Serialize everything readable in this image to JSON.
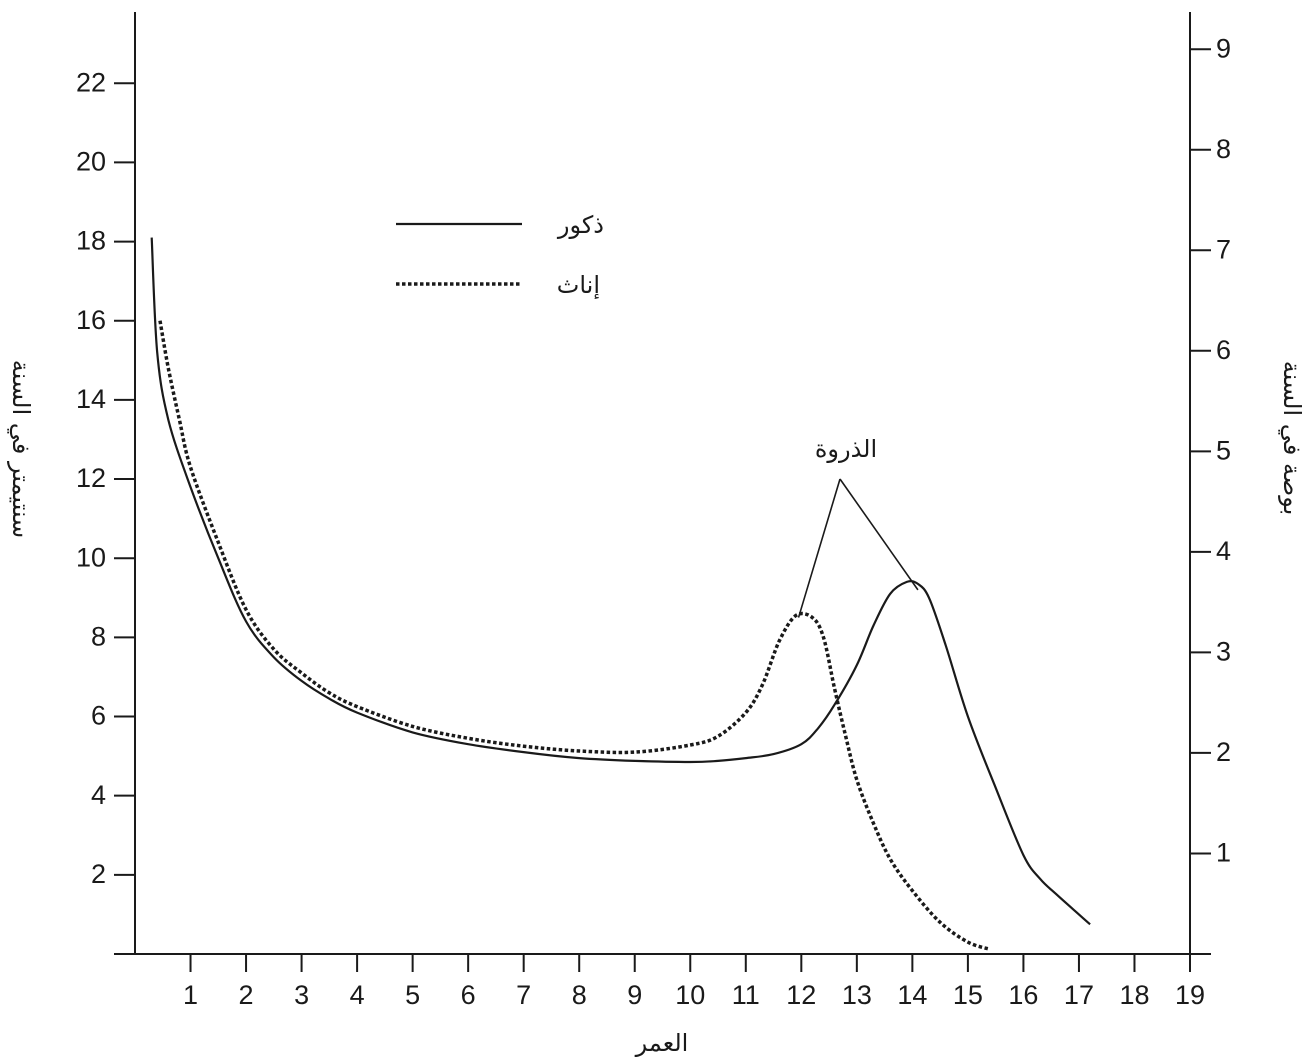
{
  "chart_data": {
    "type": "line",
    "xlabel": "العمر",
    "ylabel_left": "سنتيمتر في السنة",
    "ylabel_right": "بوصة في السنة",
    "xlim": [
      0,
      19
    ],
    "ylim_left": [
      0,
      23.8
    ],
    "ylim_right": [
      0,
      9.37
    ],
    "x_ticks": [
      1,
      2,
      3,
      4,
      5,
      6,
      7,
      8,
      9,
      10,
      11,
      12,
      13,
      14,
      15,
      16,
      17,
      18,
      19
    ],
    "y_left_ticks": [
      2,
      4,
      6,
      8,
      10,
      12,
      14,
      16,
      18,
      20,
      22
    ],
    "y_right_ticks": [
      1,
      2,
      3,
      4,
      5,
      6,
      7,
      8,
      9
    ],
    "grid": false,
    "legend_position": "top-left",
    "colors": {
      "line": "#1a1a1a"
    },
    "series": [
      {
        "name": "ذكور",
        "style": "solid",
        "x": [
          0.3,
          0.4,
          0.6,
          1,
          1.5,
          2,
          2.5,
          3,
          3.5,
          4,
          5,
          6,
          7,
          8,
          9,
          10,
          10.5,
          11,
          11.5,
          12,
          12.3,
          12.6,
          13,
          13.3,
          13.6,
          13.9,
          14.1,
          14.3,
          14.6,
          15,
          15.5,
          16,
          16.3,
          16.6,
          17,
          17.2
        ],
        "y": [
          18.1,
          15.2,
          13.5,
          11.8,
          10.0,
          8.4,
          7.5,
          6.9,
          6.45,
          6.1,
          5.6,
          5.3,
          5.1,
          4.95,
          4.88,
          4.85,
          4.88,
          4.95,
          5.05,
          5.3,
          5.7,
          6.3,
          7.3,
          8.3,
          9.1,
          9.4,
          9.35,
          9.0,
          7.8,
          6.0,
          4.2,
          2.5,
          1.9,
          1.5,
          1.0,
          0.75
        ]
      },
      {
        "name": "إناث",
        "style": "dotted",
        "x": [
          0.45,
          0.6,
          0.8,
          1,
          1.5,
          2,
          2.5,
          3,
          3.5,
          4,
          5,
          6,
          7,
          8,
          9,
          10,
          10.5,
          11,
          11.3,
          11.6,
          11.9,
          12.2,
          12.4,
          12.6,
          12.8,
          13,
          13.3,
          13.6,
          14,
          14.5,
          15,
          15.4
        ],
        "y": [
          16.0,
          14.8,
          13.5,
          12.3,
          10.4,
          8.7,
          7.7,
          7.1,
          6.6,
          6.25,
          5.75,
          5.45,
          5.25,
          5.13,
          5.1,
          5.28,
          5.5,
          6.1,
          6.8,
          7.9,
          8.55,
          8.5,
          8.0,
          6.7,
          5.5,
          4.4,
          3.3,
          2.4,
          1.6,
          0.8,
          0.3,
          0.12
        ]
      }
    ],
    "annotations": [
      {
        "text": "الذروة",
        "points_to": [
          [
            11.95,
            8.5
          ],
          [
            14.1,
            9.2
          ]
        ]
      }
    ]
  }
}
